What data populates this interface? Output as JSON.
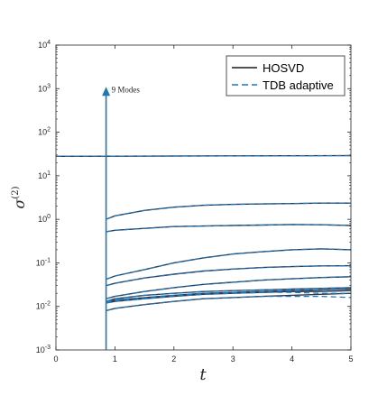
{
  "chart_data": {
    "type": "line",
    "title": "",
    "xlabel": "t",
    "ylabel_base": "σ",
    "ylabel_sup": "(2)",
    "xlim": [
      0,
      5
    ],
    "ylim": [
      0.001,
      10000
    ],
    "yscale": "log",
    "grid": false,
    "xticks": [
      0,
      1,
      2,
      3,
      4,
      5
    ],
    "xtick_labels": [
      "0",
      "1",
      "2",
      "3",
      "4",
      "5"
    ],
    "yticks": [
      0.001,
      0.01,
      0.1,
      1,
      10,
      100,
      1000,
      10000
    ],
    "ytick_exponents": [
      "-3",
      "-2",
      "-1",
      "0",
      "1",
      "2",
      "3",
      "4"
    ],
    "legend": {
      "position": "top-right",
      "entries": [
        {
          "label": "HOSVD",
          "style": "solid",
          "color": "#1a1a1a"
        },
        {
          "label": "TDB adaptive",
          "style": "dashed",
          "color": "#1f77b4"
        }
      ]
    },
    "colors": {
      "hosvd": "#2d3b55",
      "tdb": "#1f77b4",
      "annotation": "#1f77b4"
    },
    "annotation": {
      "text": "9 Modes",
      "x": 0.85,
      "y_top": 1000,
      "y_bottom": 0.001
    },
    "x": [
      0.85,
      1.0,
      1.5,
      2.0,
      2.5,
      3.0,
      3.5,
      4.0,
      4.5,
      5.0
    ],
    "reference_line": {
      "x": [
        0,
        5
      ],
      "values": [
        28,
        29
      ]
    },
    "series": [
      {
        "values": [
          1.0,
          1.2,
          1.6,
          1.9,
          2.1,
          2.2,
          2.25,
          2.3,
          2.35,
          2.35
        ]
      },
      {
        "values": [
          0.52,
          0.56,
          0.62,
          0.68,
          0.7,
          0.72,
          0.74,
          0.76,
          0.75,
          0.72
        ]
      },
      {
        "values": [
          0.042,
          0.05,
          0.07,
          0.1,
          0.13,
          0.16,
          0.18,
          0.2,
          0.21,
          0.2
        ]
      },
      {
        "values": [
          0.03,
          0.034,
          0.045,
          0.055,
          0.065,
          0.072,
          0.078,
          0.082,
          0.085,
          0.086
        ]
      },
      {
        "values": [
          0.015,
          0.017,
          0.022,
          0.027,
          0.032,
          0.036,
          0.04,
          0.043,
          0.046,
          0.048
        ]
      },
      {
        "values": [
          0.013,
          0.015,
          0.018,
          0.02,
          0.022,
          0.023,
          0.024,
          0.025,
          0.026,
          0.027
        ]
      },
      {
        "values": [
          0.012,
          0.014,
          0.016,
          0.018,
          0.02,
          0.021,
          0.022,
          0.023,
          0.024,
          0.025
        ]
      },
      {
        "values": [
          0.012,
          0.013,
          0.015,
          0.017,
          0.019,
          0.02,
          0.021,
          0.022,
          0.022,
          0.023
        ]
      },
      {
        "values": [
          0.008,
          0.009,
          0.011,
          0.013,
          0.015,
          0.016,
          0.017,
          0.018,
          0.019,
          0.02
        ]
      }
    ],
    "series_tdb": [
      {
        "values": [
          1.0,
          1.2,
          1.6,
          1.9,
          2.1,
          2.2,
          2.25,
          2.3,
          2.35,
          2.35
        ]
      },
      {
        "values": [
          0.52,
          0.56,
          0.62,
          0.68,
          0.7,
          0.72,
          0.74,
          0.76,
          0.75,
          0.72
        ]
      },
      {
        "values": [
          0.042,
          0.05,
          0.07,
          0.1,
          0.13,
          0.16,
          0.18,
          0.2,
          0.21,
          0.2
        ]
      },
      {
        "values": [
          0.03,
          0.034,
          0.045,
          0.055,
          0.065,
          0.072,
          0.078,
          0.082,
          0.085,
          0.086
        ]
      },
      {
        "values": [
          0.015,
          0.017,
          0.022,
          0.027,
          0.032,
          0.036,
          0.04,
          0.043,
          0.046,
          0.048
        ]
      },
      {
        "values": [
          0.013,
          0.015,
          0.018,
          0.02,
          0.022,
          0.023,
          0.024,
          0.025,
          0.026,
          0.027
        ]
      },
      {
        "values": [
          0.012,
          0.014,
          0.016,
          0.018,
          0.02,
          0.021,
          0.022,
          0.023,
          0.024,
          0.026
        ]
      },
      {
        "values": [
          0.012,
          0.013,
          0.015,
          0.017,
          0.019,
          0.02,
          0.021,
          0.021,
          0.02,
          0.02
        ]
      },
      {
        "values": [
          0.008,
          0.009,
          0.011,
          0.013,
          0.015,
          0.016,
          0.017,
          0.017,
          0.017,
          0.016
        ]
      }
    ]
  }
}
